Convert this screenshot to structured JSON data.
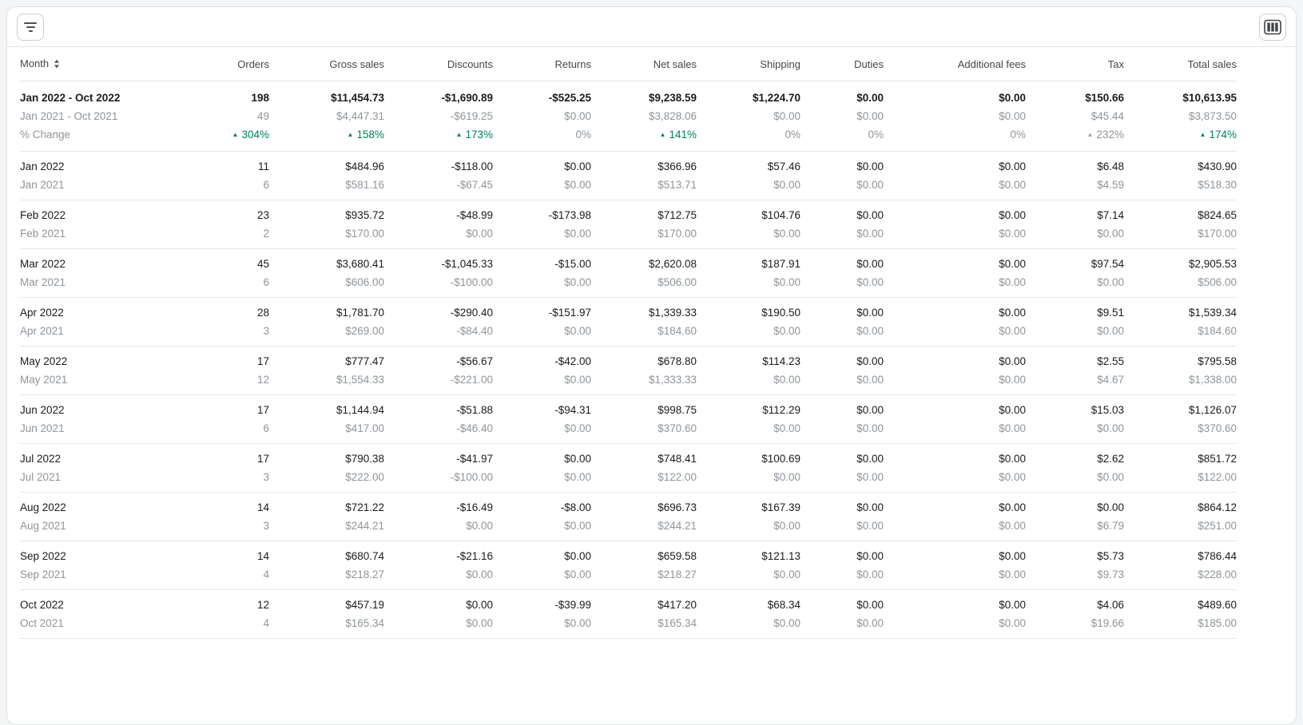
{
  "toolbar": {
    "filter_button": "filter",
    "columns_button": "columns"
  },
  "colors": {
    "accent_teal": "#008060",
    "text_dark": "#1a1c1d",
    "text_gray": "#8f959a",
    "border": "#e4e5e7"
  },
  "table": {
    "columns": [
      "Month",
      "Orders",
      "Gross sales",
      "Discounts",
      "Returns",
      "Net sales",
      "Shipping",
      "Duties",
      "Additional fees",
      "Tax",
      "Total sales"
    ],
    "summary": {
      "current": {
        "label": "Jan 2022 - Oct 2022",
        "values": [
          "198",
          "$11,454.73",
          "-$1,690.89",
          "-$525.25",
          "$9,238.59",
          "$1,224.70",
          "$0.00",
          "$0.00",
          "$150.66",
          "$10,613.95"
        ]
      },
      "previous": {
        "label": "Jan 2021 - Oct 2021",
        "values": [
          "49",
          "$4,447.31",
          "-$619.25",
          "$0.00",
          "$3,828.06",
          "$0.00",
          "$0.00",
          "$0.00",
          "$45.44",
          "$3,873.50"
        ]
      },
      "change": {
        "label": "% Change",
        "values": [
          {
            "text": "304%",
            "arrow": true,
            "tone": "positive"
          },
          {
            "text": "158%",
            "arrow": true,
            "tone": "positive"
          },
          {
            "text": "173%",
            "arrow": true,
            "tone": "positive"
          },
          {
            "text": "0%",
            "arrow": false,
            "tone": "neutral"
          },
          {
            "text": "141%",
            "arrow": true,
            "tone": "positive"
          },
          {
            "text": "0%",
            "arrow": false,
            "tone": "neutral"
          },
          {
            "text": "0%",
            "arrow": false,
            "tone": "neutral"
          },
          {
            "text": "0%",
            "arrow": false,
            "tone": "neutral"
          },
          {
            "text": "232%",
            "arrow": true,
            "tone": "neutral"
          },
          {
            "text": "174%",
            "arrow": true,
            "tone": "positive"
          }
        ]
      }
    },
    "groups": [
      {
        "current": {
          "label": "Jan 2022",
          "values": [
            "11",
            "$484.96",
            "-$118.00",
            "$0.00",
            "$366.96",
            "$57.46",
            "$0.00",
            "$0.00",
            "$6.48",
            "$430.90"
          ]
        },
        "previous": {
          "label": "Jan 2021",
          "values": [
            "6",
            "$581.16",
            "-$67.45",
            "$0.00",
            "$513.71",
            "$0.00",
            "$0.00",
            "$0.00",
            "$4.59",
            "$518.30"
          ]
        }
      },
      {
        "current": {
          "label": "Feb 2022",
          "values": [
            "23",
            "$935.72",
            "-$48.99",
            "-$173.98",
            "$712.75",
            "$104.76",
            "$0.00",
            "$0.00",
            "$7.14",
            "$824.65"
          ]
        },
        "previous": {
          "label": "Feb 2021",
          "values": [
            "2",
            "$170.00",
            "$0.00",
            "$0.00",
            "$170.00",
            "$0.00",
            "$0.00",
            "$0.00",
            "$0.00",
            "$170.00"
          ]
        }
      },
      {
        "current": {
          "label": "Mar 2022",
          "values": [
            "45",
            "$3,680.41",
            "-$1,045.33",
            "-$15.00",
            "$2,620.08",
            "$187.91",
            "$0.00",
            "$0.00",
            "$97.54",
            "$2,905.53"
          ]
        },
        "previous": {
          "label": "Mar 2021",
          "values": [
            "6",
            "$606.00",
            "-$100.00",
            "$0.00",
            "$506.00",
            "$0.00",
            "$0.00",
            "$0.00",
            "$0.00",
            "$506.00"
          ]
        }
      },
      {
        "current": {
          "label": "Apr 2022",
          "values": [
            "28",
            "$1,781.70",
            "-$290.40",
            "-$151.97",
            "$1,339.33",
            "$190.50",
            "$0.00",
            "$0.00",
            "$9.51",
            "$1,539.34"
          ]
        },
        "previous": {
          "label": "Apr 2021",
          "values": [
            "3",
            "$269.00",
            "-$84.40",
            "$0.00",
            "$184.60",
            "$0.00",
            "$0.00",
            "$0.00",
            "$0.00",
            "$184.60"
          ]
        }
      },
      {
        "current": {
          "label": "May 2022",
          "values": [
            "17",
            "$777.47",
            "-$56.67",
            "-$42.00",
            "$678.80",
            "$114.23",
            "$0.00",
            "$0.00",
            "$2.55",
            "$795.58"
          ]
        },
        "previous": {
          "label": "May 2021",
          "values": [
            "12",
            "$1,554.33",
            "-$221.00",
            "$0.00",
            "$1,333.33",
            "$0.00",
            "$0.00",
            "$0.00",
            "$4.67",
            "$1,338.00"
          ]
        }
      },
      {
        "current": {
          "label": "Jun 2022",
          "values": [
            "17",
            "$1,144.94",
            "-$51.88",
            "-$94.31",
            "$998.75",
            "$112.29",
            "$0.00",
            "$0.00",
            "$15.03",
            "$1,126.07"
          ]
        },
        "previous": {
          "label": "Jun 2021",
          "values": [
            "6",
            "$417.00",
            "-$46.40",
            "$0.00",
            "$370.60",
            "$0.00",
            "$0.00",
            "$0.00",
            "$0.00",
            "$370.60"
          ]
        }
      },
      {
        "current": {
          "label": "Jul 2022",
          "values": [
            "17",
            "$790.38",
            "-$41.97",
            "$0.00",
            "$748.41",
            "$100.69",
            "$0.00",
            "$0.00",
            "$2.62",
            "$851.72"
          ]
        },
        "previous": {
          "label": "Jul 2021",
          "values": [
            "3",
            "$222.00",
            "-$100.00",
            "$0.00",
            "$122.00",
            "$0.00",
            "$0.00",
            "$0.00",
            "$0.00",
            "$122.00"
          ]
        }
      },
      {
        "current": {
          "label": "Aug 2022",
          "values": [
            "14",
            "$721.22",
            "-$16.49",
            "-$8.00",
            "$696.73",
            "$167.39",
            "$0.00",
            "$0.00",
            "$0.00",
            "$864.12"
          ]
        },
        "previous": {
          "label": "Aug 2021",
          "values": [
            "3",
            "$244.21",
            "$0.00",
            "$0.00",
            "$244.21",
            "$0.00",
            "$0.00",
            "$0.00",
            "$6.79",
            "$251.00"
          ]
        }
      },
      {
        "current": {
          "label": "Sep 2022",
          "values": [
            "14",
            "$680.74",
            "-$21.16",
            "$0.00",
            "$659.58",
            "$121.13",
            "$0.00",
            "$0.00",
            "$5.73",
            "$786.44"
          ]
        },
        "previous": {
          "label": "Sep 2021",
          "values": [
            "4",
            "$218.27",
            "$0.00",
            "$0.00",
            "$218.27",
            "$0.00",
            "$0.00",
            "$0.00",
            "$9.73",
            "$228.00"
          ]
        }
      },
      {
        "current": {
          "label": "Oct 2022",
          "values": [
            "12",
            "$457.19",
            "$0.00",
            "-$39.99",
            "$417.20",
            "$68.34",
            "$0.00",
            "$0.00",
            "$4.06",
            "$489.60"
          ]
        },
        "previous": {
          "label": "Oct 2021",
          "values": [
            "4",
            "$165.34",
            "$0.00",
            "$0.00",
            "$165.34",
            "$0.00",
            "$0.00",
            "$0.00",
            "$19.66",
            "$185.00"
          ]
        }
      }
    ]
  }
}
